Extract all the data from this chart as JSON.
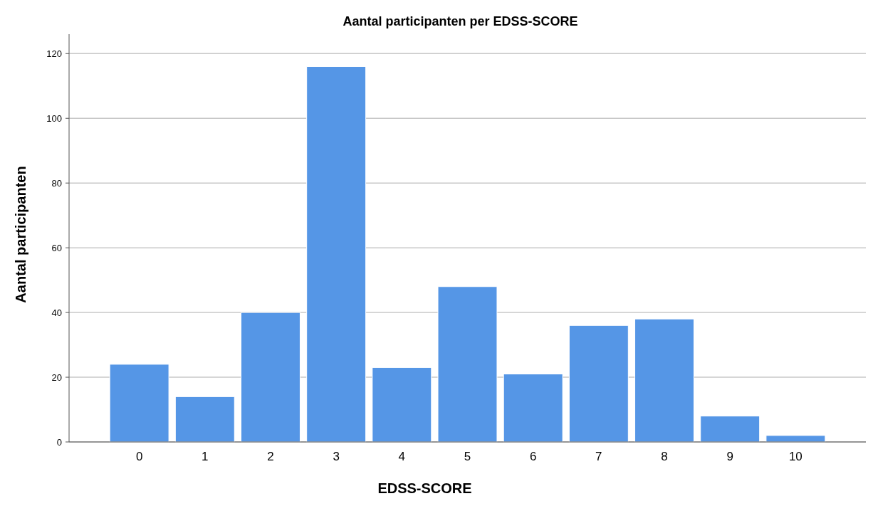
{
  "chart_data": {
    "type": "bar",
    "title": "Aantal participanten per EDSS-SCORE",
    "xlabel": "EDSS-SCORE",
    "ylabel": "Aantal participanten",
    "categories": [
      "0",
      "1",
      "2",
      "3",
      "4",
      "5",
      "6",
      "7",
      "8",
      "9",
      "10"
    ],
    "values": [
      24,
      14,
      40,
      116,
      23,
      48,
      21,
      36,
      38,
      8,
      2
    ],
    "color": "#5596e6",
    "ylim": [
      0,
      126
    ],
    "yticks": [
      0,
      20,
      40,
      60,
      80,
      100,
      120
    ],
    "grid": "y"
  }
}
